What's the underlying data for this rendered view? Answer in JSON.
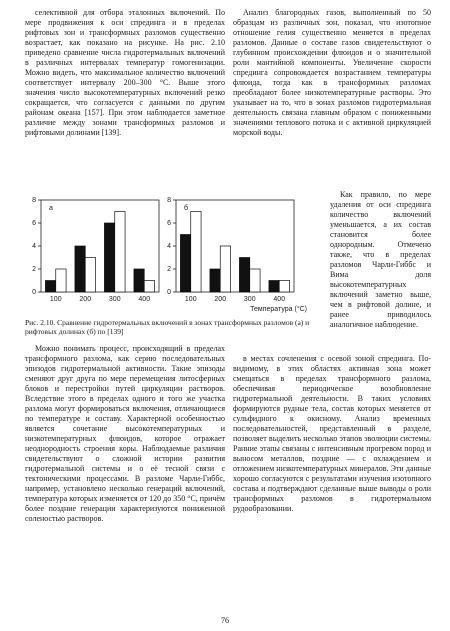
{
  "top_left": "селективной для отбора эталонных включений. По мере продвижения к оси спрединга и в пределах рифтовых зон и трансформных разломов существенно возрастает, как показано на рисунке. На рис. 2.10 приведено сравнение числа гидротермальных включений в различных интервалах температур гомогенизации. Можно видеть, что максимальное количество включений соответствует интервалу 200–300 °С. Выше этого значения число высокотемпературных включений резко сокращается, что согласуется с данными по другим районам океана [157]. При этом наблюдается заметное различие между зонами трансформных разломов и рифтовыми долинами [139].",
  "top_right": "Анализ благородных газов, выполненный по 50 образцам из различных зон, показал, что изотопное отношение гелия существенно меняется в пределах разломов. Данные о составе газов свидетельствуют о глубинном происхождении флюидов и о значительной роли мантийной компоненты. Увеличение скорости спрединга сопровождается возрастанием температуры флюида, тогда как в трансформных разломах преобладают более низкотемпературные растворы. Это указывает на то, что в зонах разломов гидротермальная деятельность связана главным образом с пониженными значениями теплового потока и с активной циркуляцией морской воды.",
  "side": "Как правило, по мере удаления от оси спрединга количество включений уменьшается, а их состав становится более однородным. Отмечено также, что в пределах разломов Чарли-Гиббс и Вима доля высокотемпературных включений заметно выше, чем в рифтовой долине, и ранее приводилось аналогичное наблюдение.",
  "figure": {
    "panels": [
      {
        "label": "а",
        "ylim": [
          0,
          8
        ],
        "yticks": [
          0,
          2,
          4,
          6,
          8
        ],
        "categories": [
          "100",
          "200",
          "300",
          "400"
        ],
        "series": [
          {
            "color": "#111111",
            "values": [
              1,
              4,
              6,
              2
            ]
          },
          {
            "color": "#ffffff",
            "values": [
              2,
              3,
              7,
              1
            ]
          }
        ]
      },
      {
        "label": "б",
        "ylim": [
          0,
          8
        ],
        "yticks": [
          0,
          2,
          4,
          6,
          8
        ],
        "categories": [
          "100",
          "200",
          "300",
          "400"
        ],
        "series": [
          {
            "color": "#111111",
            "values": [
              5,
              2,
              3,
              1
            ]
          },
          {
            "color": "#ffffff",
            "values": [
              7,
              4,
              2,
              1
            ]
          }
        ]
      }
    ],
    "xlabel": "Температура (°С)"
  },
  "caption": "Рис. 2.10. Сравнение гидротермальных включений в зонах трансформных разломов (а) и рифтовых долинах (б) по [139]",
  "bottom_left": "Можно понимать процесс, происходящий в пределах трансформного разлома, как серию последовательных эпизодов гидротермальной активности. Такие эпизоды сменяют друг друга по мере перемещения литосферных блоков и перестройки путей циркуляции растворов. Вследствие этого в пределах одного и того же участка разлома могут формироваться включения, отличающиеся по температуре и составу. Характерной особенностью является сочетание высокотемпературных и низкотемпературных флюидов, которое отражает неоднородность строения коры. Наблюдаемые различия свидетельствуют о сложной истории развития гидротермальной системы и о её тесной связи с тектоническими процессами. В разломе Чарли-Гиббс, например, установлено несколько генераций включений, температура которых изменяется от 120 до 350 °С, причём более поздние генерации характеризуются пониженной соленостью растворов.",
  "bottom_right": "в местах сочленения с осевой зоной спрединга. По-видимому, в этих областях активная зона может смещаться в пределах трансформного разлома, обеспечивая периодическое возобновление гидротермальной деятельности. В таких условиях формируются рудные тела, состав которых меняется от сульфидного к окисному. Анализ временных последовательностей, представленный в разделе, позволяет выделить несколько этапов эволюции системы. Ранние этапы связаны с интенсивным прогревом пород и выносом металлов, поздние — с охлаждением и отложением низкотемпературных минералов. Эти данные хорошо согласуются с результатами изучения изотопного состава и подтверждают сделанные выше выводы о роли трансформных разломов в гидротермальном рудообразовании.",
  "page_number": "76"
}
